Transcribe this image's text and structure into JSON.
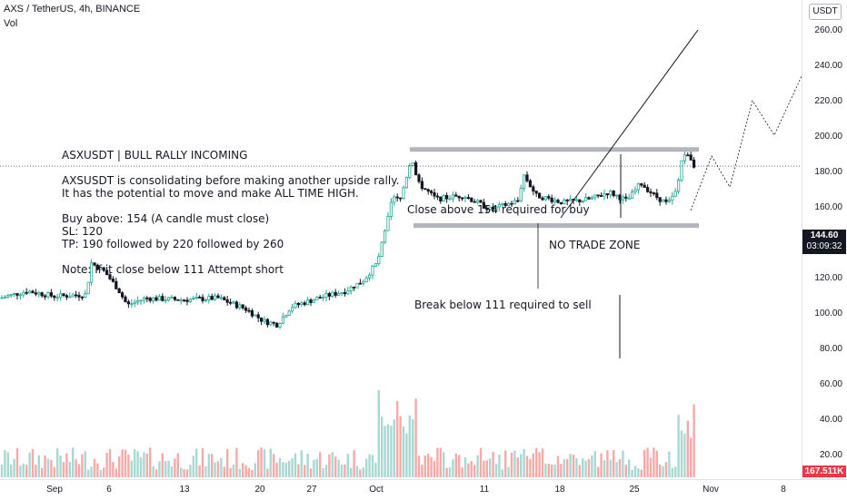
{
  "header": {
    "symbol_title": "AXS / TetherUS, 4h, BINANCE",
    "vol_label": "Vol"
  },
  "notes": {
    "headline": "ASXUSDT | BULL RALLY INCOMING",
    "line1": "AXSUSDT is consolidating before making another upside rally.",
    "line2": "It has the potential to move and make ALL TIME HIGH.",
    "buy": "Buy above: 154 (A candle must close)",
    "sl": "SL: 120",
    "tp": "TP: 190 followed by 220 followed by 260",
    "note": "Note: If it close below 111 Attempt short"
  },
  "annotations": {
    "close_above": "Close above 154 required for buy",
    "no_trade_zone": "NO TRADE ZONE",
    "break_below": "Break below 111 required to sell"
  },
  "price_scale": {
    "currency": "USDT",
    "ticks": [
      "260.00",
      "240.00",
      "220.00",
      "200.00",
      "180.00",
      "160.00",
      "120.00",
      "100.00",
      "80.00",
      "60.00",
      "40.00",
      "20.00"
    ],
    "last_price": "144.60",
    "countdown": "03:09:32",
    "volume": "167.511K"
  },
  "time_scale": {
    "labels": [
      "Sep",
      "6",
      "13",
      "20",
      "27",
      "Oct",
      "11",
      "18",
      "25",
      "Nov",
      "8"
    ]
  },
  "levels": {
    "resistance": 154,
    "support": 111,
    "current": 144.6
  },
  "colors": {
    "up": "#26a69a",
    "down": "#131722",
    "level_band": "#b2b5be",
    "vol_up": "#a7d8d3",
    "vol_down": "#f7a9a7"
  }
}
